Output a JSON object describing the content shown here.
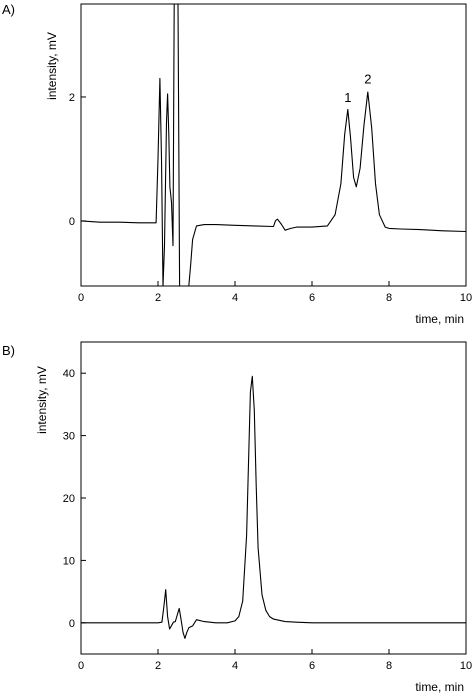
{
  "chart_data": [
    {
      "panel_label": "A)",
      "type": "line",
      "xlabel": "time, min",
      "ylabel": "intensity, mV",
      "xlim": [
        0,
        10
      ],
      "ylim": [
        -1.05,
        3.5
      ],
      "x_ticks": [
        "0",
        "2",
        "4",
        "6",
        "8",
        "10"
      ],
      "y_ticks": [
        "0",
        "2"
      ],
      "grid": false,
      "annotations": [
        {
          "text": "1",
          "x": 6.93,
          "y": 1.92
        },
        {
          "text": "2",
          "x": 7.45,
          "y": 2.22
        }
      ],
      "series": [
        {
          "x": [
            0,
            0.5,
            1.0,
            1.5,
            1.95,
            2.0,
            2.05,
            2.09,
            2.13,
            2.17,
            2.22,
            2.25,
            2.28,
            2.31,
            2.35,
            2.39,
            2.42,
            2.45,
            2.48,
            2.52,
            2.56,
            2.6,
            2.65,
            2.7,
            2.75,
            2.8,
            2.85,
            2.9,
            3.0,
            3.2,
            3.5,
            4.0,
            4.5,
            5.0,
            5.05,
            5.1,
            5.2,
            5.3,
            5.45,
            5.6,
            6.0,
            6.4,
            6.6,
            6.75,
            6.85,
            6.93,
            7.0,
            7.08,
            7.15,
            7.25,
            7.35,
            7.45,
            7.55,
            7.65,
            7.75,
            7.9,
            8.0,
            8.3,
            8.8,
            9.4,
            10.0
          ],
          "y": [
            0.0,
            -0.02,
            -0.02,
            -0.03,
            -0.03,
            1.0,
            2.3,
            1.0,
            -1.05,
            -0.4,
            1.6,
            2.05,
            1.4,
            0.55,
            0.3,
            -0.4,
            3.5,
            3.5,
            3.5,
            3.5,
            -1.05,
            -1.05,
            -1.05,
            -1.05,
            -1.05,
            -1.05,
            -0.7,
            -0.3,
            -0.08,
            -0.06,
            -0.06,
            -0.07,
            -0.08,
            -0.09,
            0.0,
            0.03,
            -0.05,
            -0.15,
            -0.12,
            -0.1,
            -0.1,
            -0.08,
            0.1,
            0.6,
            1.4,
            1.8,
            1.35,
            0.7,
            0.55,
            0.85,
            1.55,
            2.08,
            1.5,
            0.6,
            0.1,
            -0.1,
            -0.12,
            -0.13,
            -0.14,
            -0.16,
            -0.17
          ]
        }
      ]
    },
    {
      "panel_label": "B)",
      "type": "line",
      "xlabel": "time, min",
      "ylabel": "intensity, mV",
      "xlim": [
        0,
        10
      ],
      "ylim": [
        -5,
        45
      ],
      "x_ticks": [
        "0",
        "2",
        "4",
        "6",
        "8",
        "10"
      ],
      "y_ticks": [
        "0",
        "10",
        "20",
        "30",
        "40"
      ],
      "grid": false,
      "series": [
        {
          "x": [
            0,
            1.0,
            2.0,
            2.1,
            2.15,
            2.2,
            2.25,
            2.3,
            2.4,
            2.45,
            2.55,
            2.6,
            2.65,
            2.7,
            2.75,
            2.8,
            2.9,
            3.0,
            3.2,
            3.5,
            3.8,
            4.0,
            4.1,
            4.2,
            4.3,
            4.36,
            4.4,
            4.45,
            4.5,
            4.55,
            4.6,
            4.7,
            4.8,
            4.9,
            5.0,
            5.3,
            5.6,
            6.0,
            7.0,
            8.0,
            9.0,
            10.0
          ],
          "y": [
            0,
            0,
            0,
            0.1,
            2.5,
            5.3,
            1.0,
            -1.0,
            0.1,
            0.2,
            2.3,
            0.5,
            -1.5,
            -2.5,
            -1.5,
            -0.8,
            -0.5,
            0.5,
            0.2,
            0,
            0,
            0.3,
            1.0,
            3.5,
            14.0,
            28.0,
            37.0,
            39.5,
            34.0,
            22.0,
            12.0,
            4.5,
            2.0,
            1.0,
            0.6,
            0.2,
            0.1,
            0,
            0,
            0,
            0,
            0
          ]
        }
      ]
    }
  ]
}
